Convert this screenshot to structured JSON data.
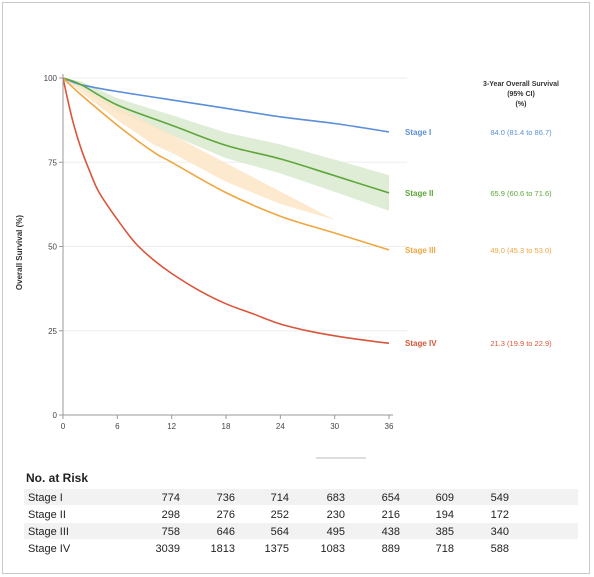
{
  "chart_data": {
    "type": "line",
    "ylabel": "Overall Survival (%)",
    "xlabel": "",
    "xlim": [
      0,
      36
    ],
    "ylim": [
      0,
      100
    ],
    "x_ticks": [
      0,
      6,
      12,
      18,
      24,
      30,
      36
    ],
    "y_ticks": [
      0,
      25,
      50,
      75,
      100
    ],
    "grid": true,
    "legend_header": [
      "3-Year Overall Survival",
      "(95% CI)",
      "(%)"
    ],
    "series": [
      {
        "name": "Stage I",
        "color": "#5b8fd9",
        "stat": "84.0 (81.4 to 86.7)",
        "band": false,
        "x": [
          0,
          2,
          6,
          12,
          18,
          24,
          30,
          36
        ],
        "y": [
          100,
          98,
          96,
          93.5,
          91,
          88.5,
          86.5,
          84
        ]
      },
      {
        "name": "Stage II",
        "color": "#5ea63a",
        "stat": "65.9 (60.6 to 71.6)",
        "band": true,
        "band_color": "#d9ead0",
        "band_halfwidth": [
          0,
          1,
          2,
          3,
          3.8,
          4.3,
          4.8,
          5.3
        ],
        "x": [
          0,
          2,
          6,
          12,
          18,
          24,
          30,
          36
        ],
        "y": [
          100,
          98,
          92,
          86,
          80,
          76,
          71,
          65.9
        ]
      },
      {
        "name": "Stage III",
        "color": "#f0a640",
        "stat": "49.0 (45.3 to 53.0)",
        "band": true,
        "band_color": "#fbe5c6",
        "band_halfwidth": [
          0,
          0.8,
          1.5,
          2.2,
          2.8,
          3.2,
          3.6,
          3.9
        ],
        "x": [
          0,
          2,
          6,
          10,
          12,
          18,
          24,
          30,
          36
        ],
        "y": [
          100,
          95,
          86,
          78,
          75,
          66,
          59,
          54,
          49
        ]
      },
      {
        "name": "Stage IV",
        "color": "#d9553a",
        "stat": "21.3 (19.9 to 22.9)",
        "band": false,
        "x": [
          0,
          1,
          2,
          3,
          4,
          6,
          8,
          10,
          12,
          15,
          18,
          21,
          24,
          27,
          30,
          33,
          36
        ],
        "y": [
          100,
          88,
          79,
          72,
          66,
          58,
          51,
          46,
          42,
          37,
          33,
          30,
          27,
          25,
          23.5,
          22.3,
          21.3
        ]
      }
    ]
  },
  "risk_table": {
    "title": "No. at Risk",
    "rows": [
      {
        "label": "Stage I",
        "values": [
          "774",
          "736",
          "714",
          "683",
          "654",
          "609",
          "549"
        ]
      },
      {
        "label": "Stage II",
        "values": [
          "298",
          "276",
          "252",
          "230",
          "216",
          "194",
          "172"
        ]
      },
      {
        "label": "Stage III",
        "values": [
          "758",
          "646",
          "564",
          "495",
          "438",
          "385",
          "340"
        ]
      },
      {
        "label": "Stage IV",
        "values": [
          "3039",
          "1813",
          "1375",
          "1083",
          "889",
          "718",
          "588"
        ]
      }
    ]
  }
}
